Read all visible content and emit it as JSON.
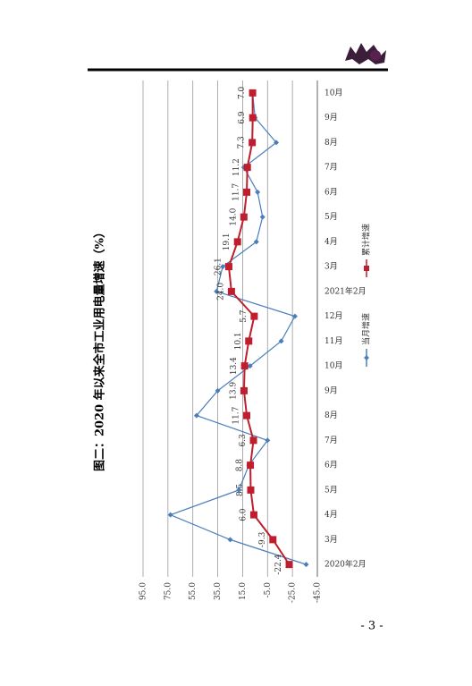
{
  "chart_data": {
    "type": "line",
    "title": "图二：2020 年以来全市工业用电量增速（%）",
    "categories": [
      "2020年2月",
      "3月",
      "4月",
      "5月",
      "6月",
      "7月",
      "8月",
      "9月",
      "10月",
      "11月",
      "12月",
      "2021年2月",
      "3月",
      "4月",
      "5月",
      "6月",
      "7月",
      "8月",
      "9月",
      "10月"
    ],
    "series": [
      {
        "name": "当月增速",
        "color": "#4a7ebb",
        "marker": "diamond",
        "values": [
          -36,
          25,
          73,
          18,
          10,
          -5,
          52,
          35,
          9,
          -16,
          -27,
          36,
          31,
          4,
          -1,
          3,
          14,
          -12,
          5,
          7
        ]
      },
      {
        "name": "累计增速",
        "color": "#be1e2d",
        "marker": "square",
        "values": [
          -22.4,
          -9.3,
          6,
          8.5,
          8.8,
          6.3,
          11.7,
          13.9,
          13.4,
          10.1,
          5.7,
          24,
          26.1,
          19.1,
          14,
          11.7,
          11.2,
          7.3,
          6.9,
          7
        ],
        "value_labels": [
          "-22.4",
          "-9.3",
          "6.0",
          "8.5",
          "8.8",
          "6.3",
          "11.7",
          "13.9",
          "13.4",
          "10.1",
          "5.7",
          "24.0",
          "26.1",
          "19.1",
          "14.0",
          "11.7",
          "11.2",
          "7.3",
          "6.9",
          "7.0"
        ]
      }
    ],
    "ylim": [
      -45,
      95
    ],
    "yticks": [
      {
        "value": -45,
        "label": "-45.0"
      },
      {
        "value": -25,
        "label": "-25.0"
      },
      {
        "value": -5,
        "label": "-5.0"
      },
      {
        "value": 15,
        "label": "15.0"
      },
      {
        "value": 35,
        "label": "35.0"
      },
      {
        "value": 55,
        "label": "55.0"
      },
      {
        "value": 75,
        "label": "75.0"
      },
      {
        "value": 95,
        "label": "95.0"
      }
    ],
    "grid": true,
    "legend": "bottom"
  },
  "page_number": "- 3 -"
}
